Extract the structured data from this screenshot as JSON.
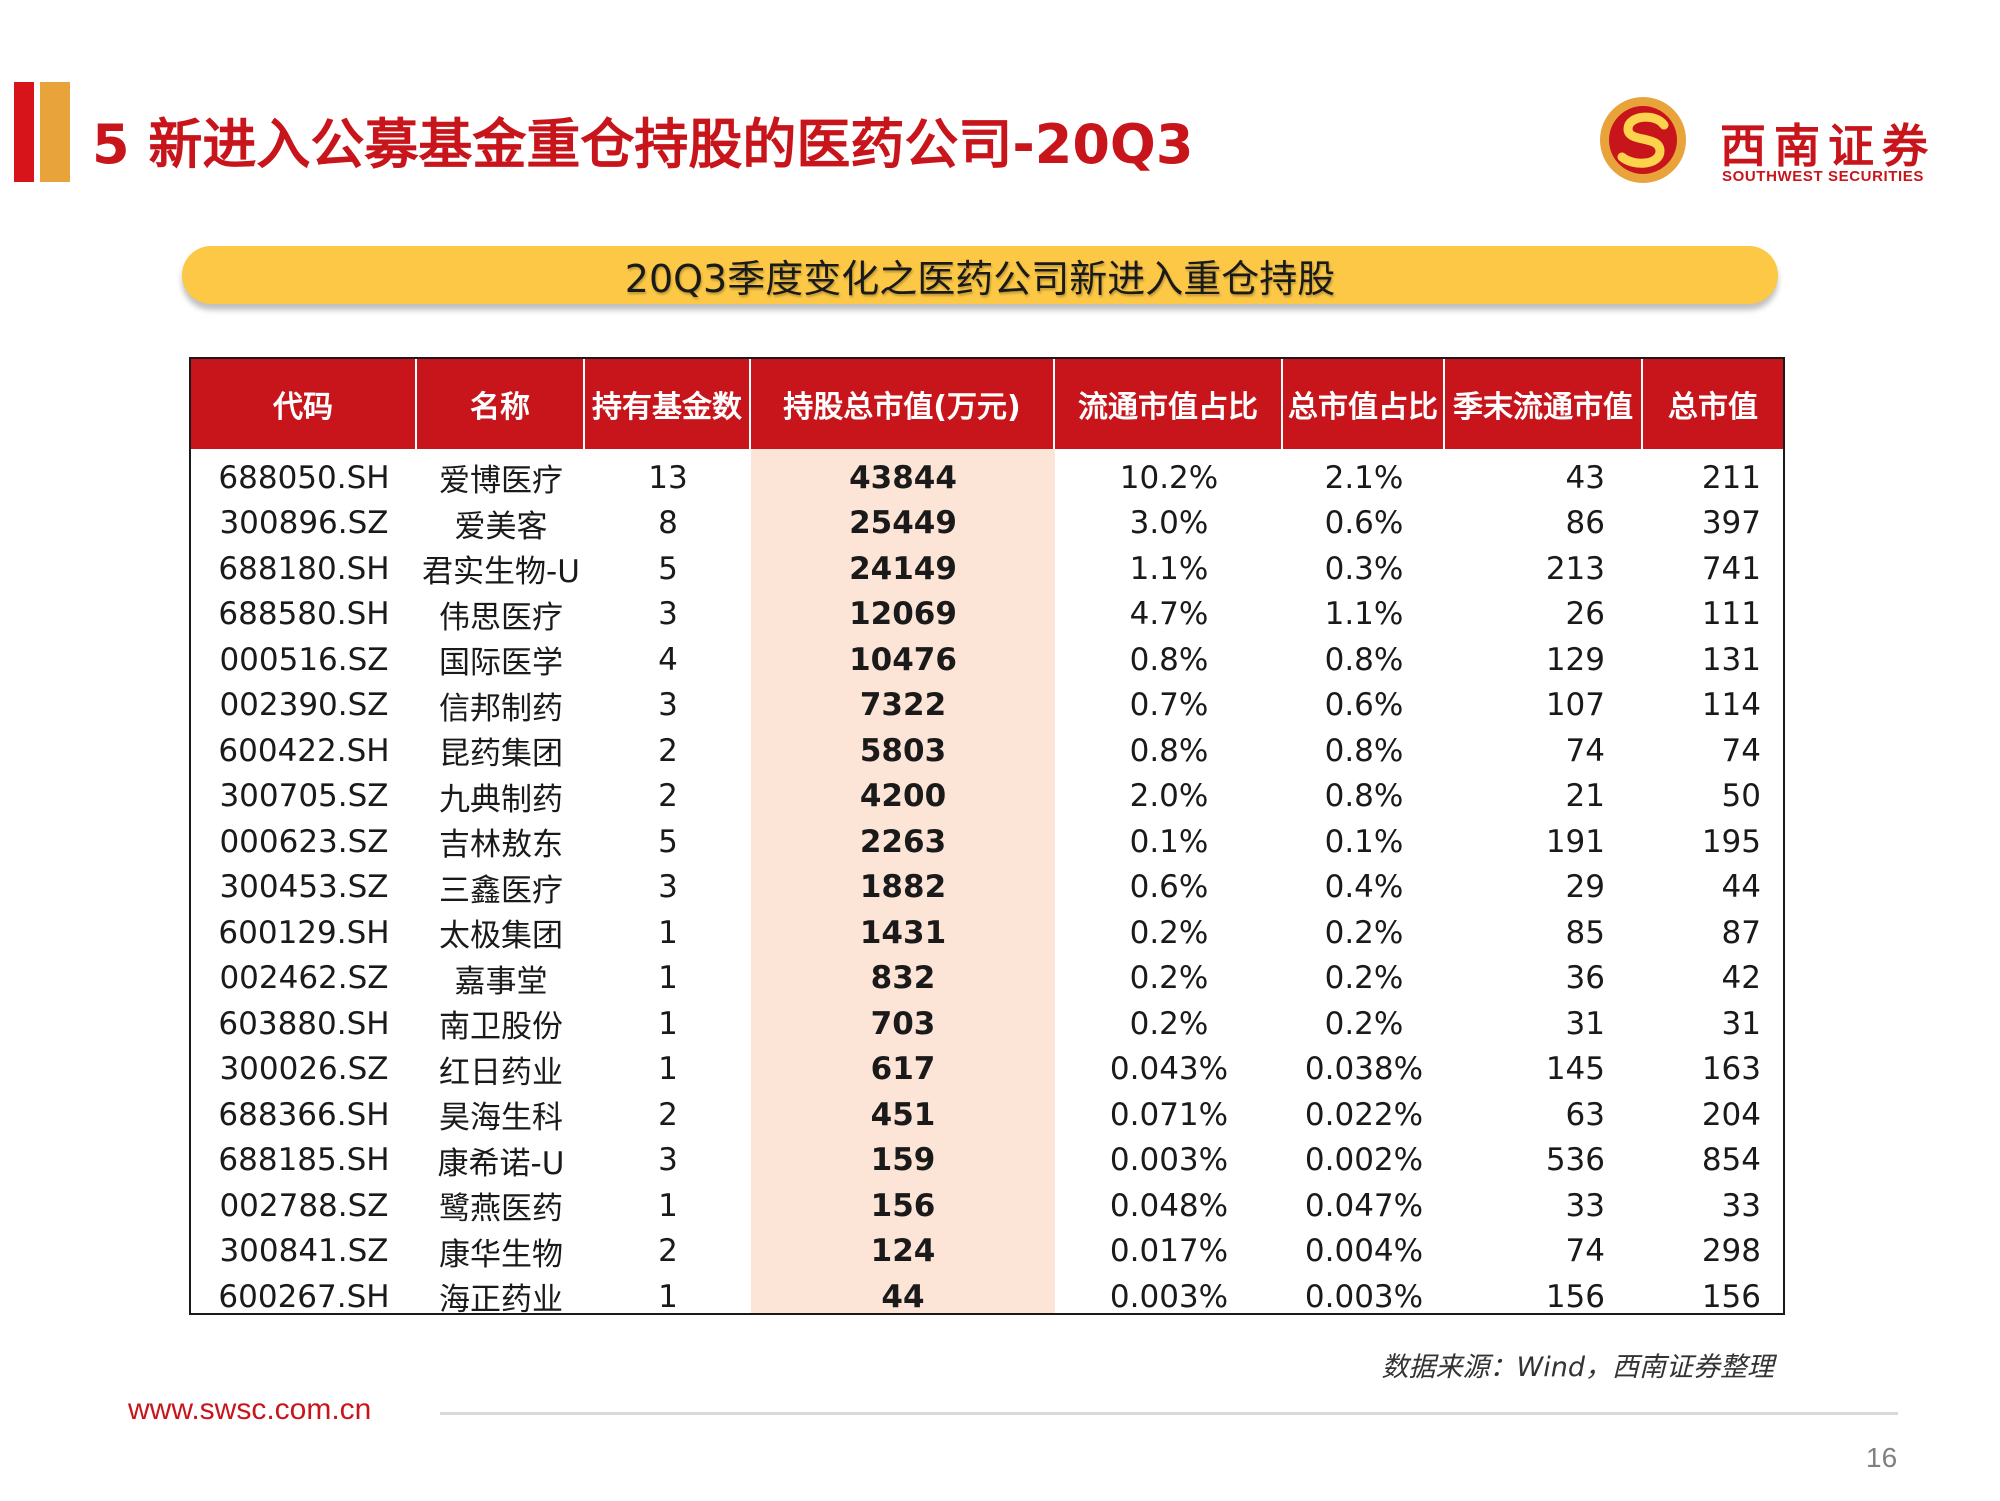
{
  "header": {
    "title": "5 新进入公募基金重仓持股的医药公司-20Q3",
    "logo_cn": "西南证券",
    "logo_en": "SOUTHWEST SECURITIES"
  },
  "banner": {
    "text": "20Q3季度变化之医药公司新进入重仓持股"
  },
  "table": {
    "columns": [
      "代码",
      "名称",
      "持有基金数",
      "持股总市值(万元)",
      "流通市值占比",
      "总市值占比",
      "季末流通市值",
      "总市值"
    ],
    "rows": [
      [
        "688050.SH",
        "爱博医疗",
        "13",
        "43844",
        "10.2%",
        "2.1%",
        "43",
        "211"
      ],
      [
        "300896.SZ",
        "爱美客",
        "8",
        "25449",
        "3.0%",
        "0.6%",
        "86",
        "397"
      ],
      [
        "688180.SH",
        "君实生物-U",
        "5",
        "24149",
        "1.1%",
        "0.3%",
        "213",
        "741"
      ],
      [
        "688580.SH",
        "伟思医疗",
        "3",
        "12069",
        "4.7%",
        "1.1%",
        "26",
        "111"
      ],
      [
        "000516.SZ",
        "国际医学",
        "4",
        "10476",
        "0.8%",
        "0.8%",
        "129",
        "131"
      ],
      [
        "002390.SZ",
        "信邦制药",
        "3",
        "7322",
        "0.7%",
        "0.6%",
        "107",
        "114"
      ],
      [
        "600422.SH",
        "昆药集团",
        "2",
        "5803",
        "0.8%",
        "0.8%",
        "74",
        "74"
      ],
      [
        "300705.SZ",
        "九典制药",
        "2",
        "4200",
        "2.0%",
        "0.8%",
        "21",
        "50"
      ],
      [
        "000623.SZ",
        "吉林敖东",
        "5",
        "2263",
        "0.1%",
        "0.1%",
        "191",
        "195"
      ],
      [
        "300453.SZ",
        "三鑫医疗",
        "3",
        "1882",
        "0.6%",
        "0.4%",
        "29",
        "44"
      ],
      [
        "600129.SH",
        "太极集团",
        "1",
        "1431",
        "0.2%",
        "0.2%",
        "85",
        "87"
      ],
      [
        "002462.SZ",
        "嘉事堂",
        "1",
        "832",
        "0.2%",
        "0.2%",
        "36",
        "42"
      ],
      [
        "603880.SH",
        "南卫股份",
        "1",
        "703",
        "0.2%",
        "0.2%",
        "31",
        "31"
      ],
      [
        "300026.SZ",
        "红日药业",
        "1",
        "617",
        "0.043%",
        "0.038%",
        "145",
        "163"
      ],
      [
        "688366.SH",
        "昊海生科",
        "2",
        "451",
        "0.071%",
        "0.022%",
        "63",
        "204"
      ],
      [
        "688185.SH",
        "康希诺-U",
        "3",
        "159",
        "0.003%",
        "0.002%",
        "536",
        "854"
      ],
      [
        "002788.SZ",
        "鹭燕医药",
        "1",
        "156",
        "0.048%",
        "0.047%",
        "33",
        "33"
      ],
      [
        "300841.SZ",
        "康华生物",
        "2",
        "124",
        "0.017%",
        "0.004%",
        "74",
        "298"
      ],
      [
        "600267.SH",
        "海正药业",
        "1",
        "44",
        "0.003%",
        "0.003%",
        "156",
        "156"
      ]
    ]
  },
  "source": "数据来源：Wind，西南证券整理",
  "footer": {
    "url": "www.swsc.com.cn",
    "page_number": "16"
  },
  "colors": {
    "brand_red": "#c8151b",
    "accent_orange": "#e9a33b",
    "banner_yellow": "#fcc845",
    "highlight_col": "#fce5d6"
  }
}
